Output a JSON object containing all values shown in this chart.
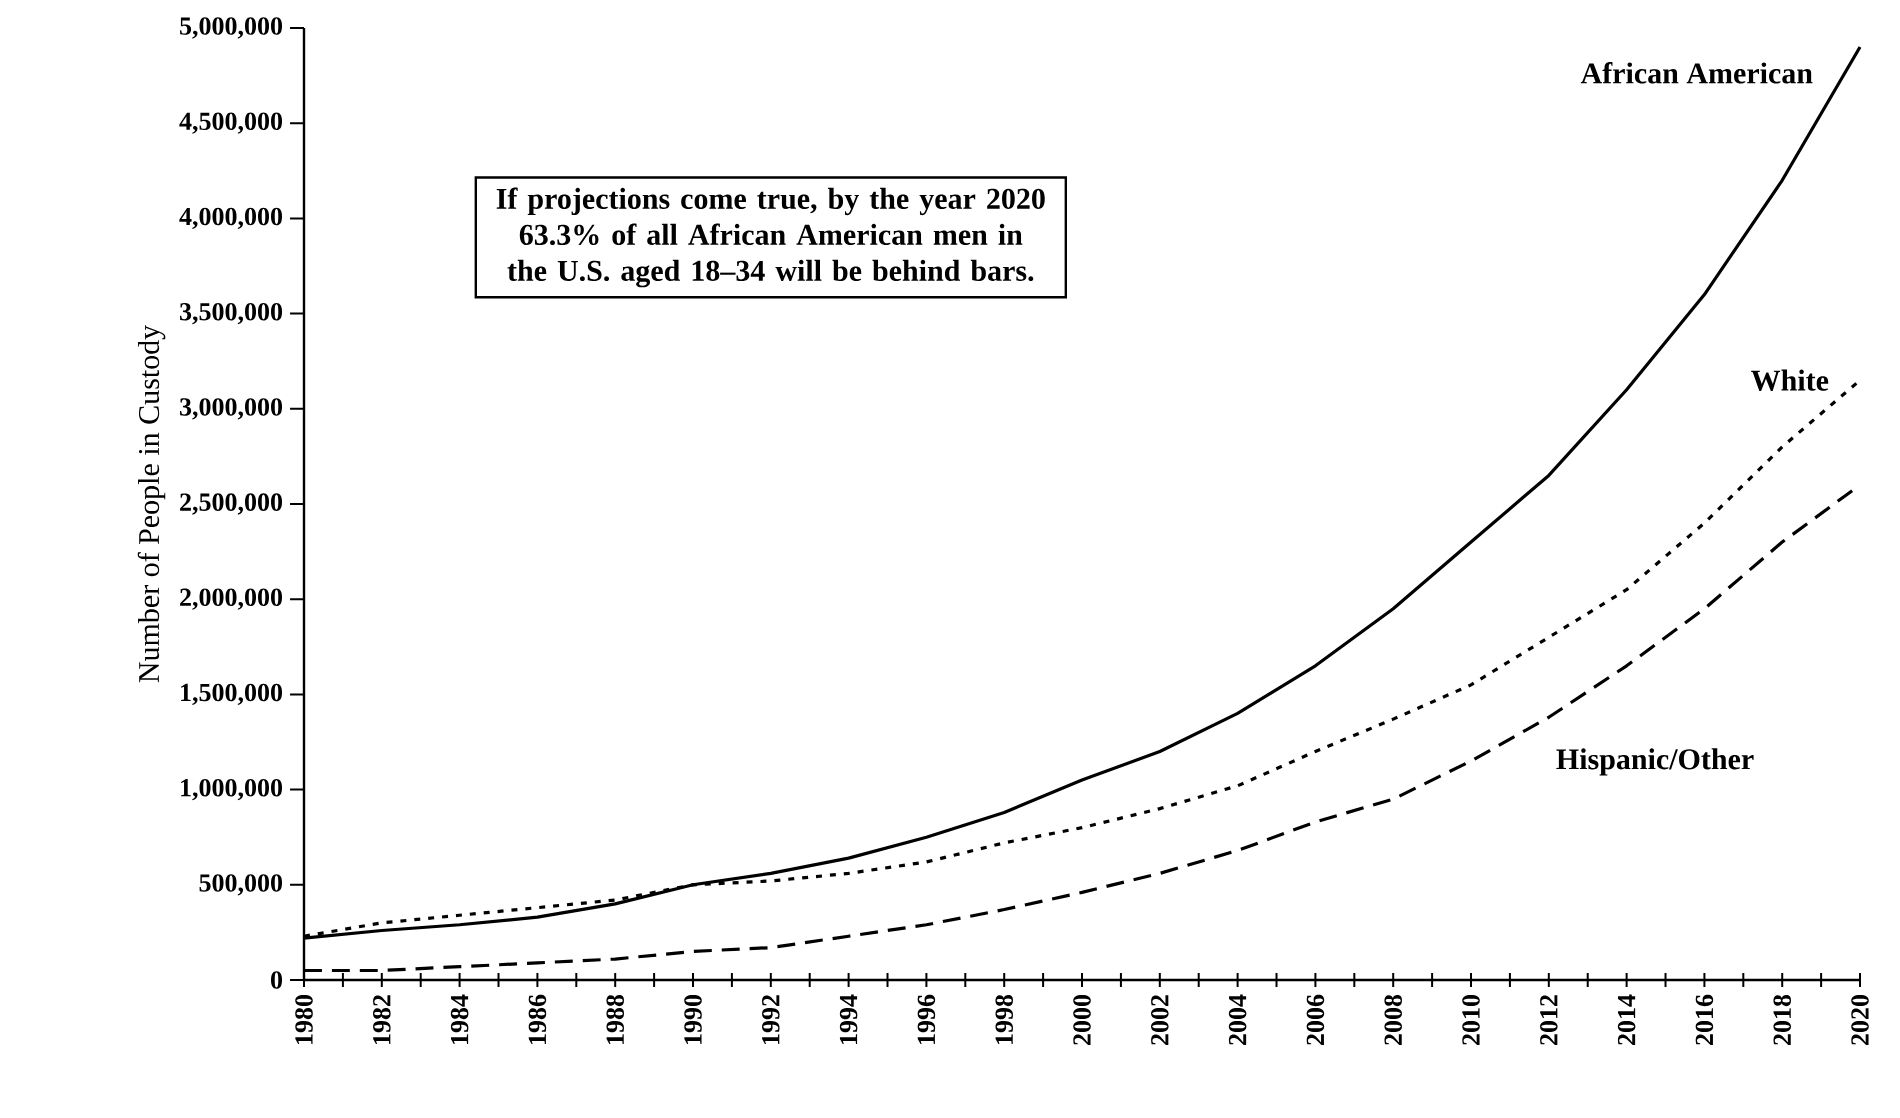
{
  "chart_data": {
    "type": "line",
    "ylabel": "Number of People in Custody",
    "x": [
      1980,
      1982,
      1984,
      1986,
      1988,
      1990,
      1992,
      1994,
      1996,
      1998,
      2000,
      2002,
      2004,
      2006,
      2008,
      2010,
      2012,
      2014,
      2016,
      2018,
      2020
    ],
    "series": [
      {
        "name": "African American",
        "color": "#000000",
        "line_style": "solid",
        "values": [
          220000,
          260000,
          290000,
          330000,
          400000,
          500000,
          560000,
          640000,
          750000,
          880000,
          1050000,
          1200000,
          1400000,
          1650000,
          1950000,
          2300000,
          2650000,
          3100000,
          3600000,
          4200000,
          4900000
        ]
      },
      {
        "name": "White",
        "color": "#000000",
        "line_style": "dotted",
        "values": [
          230000,
          300000,
          340000,
          380000,
          420000,
          500000,
          520000,
          560000,
          620000,
          720000,
          800000,
          900000,
          1020000,
          1200000,
          1370000,
          1550000,
          1800000,
          2050000,
          2400000,
          2800000,
          3150000
        ]
      },
      {
        "name": "Hispanic/Other",
        "color": "#000000",
        "line_style": "dashed",
        "values": [
          50000,
          50000,
          70000,
          90000,
          110000,
          150000,
          170000,
          230000,
          290000,
          370000,
          460000,
          560000,
          680000,
          830000,
          950000,
          1150000,
          1380000,
          1650000,
          1950000,
          2300000,
          2600000
        ]
      }
    ],
    "xlim": [
      1980,
      2020
    ],
    "xticks": [
      1980,
      {
        "value": 1981,
        "label": null
      },
      1982,
      {
        "value": 1983,
        "label": null
      },
      1984,
      {
        "value": 1985,
        "label": null
      },
      1986,
      {
        "value": 1987,
        "label": null
      },
      1988,
      {
        "value": 1989,
        "label": null
      },
      1990,
      {
        "value": 1991,
        "label": null
      },
      1992,
      {
        "value": 1993,
        "label": null
      },
      1994,
      {
        "value": 1995,
        "label": null
      },
      1996,
      {
        "value": 1997,
        "label": null
      },
      1998,
      {
        "value": 1999,
        "label": null
      },
      2000,
      {
        "value": 2001,
        "label": null
      },
      2002,
      {
        "value": 2003,
        "label": null
      },
      2004,
      {
        "value": 2005,
        "label": null
      },
      2006,
      {
        "value": 2007,
        "label": null
      },
      2008,
      {
        "value": 2009,
        "label": null
      },
      2010,
      {
        "value": 2011,
        "label": null
      },
      2012,
      {
        "value": 2013,
        "label": null
      },
      2014,
      {
        "value": 2015,
        "label": null
      },
      2016,
      {
        "value": 2017,
        "label": null
      },
      2018,
      {
        "value": 2019,
        "label": null
      },
      2020
    ],
    "ylim": [
      0,
      5000000
    ],
    "yticks": [
      {
        "value": 0,
        "label": "0"
      },
      {
        "value": 500000,
        "label": "500,000"
      },
      {
        "value": 1000000,
        "label": "1,000,000"
      },
      {
        "value": 1500000,
        "label": "1,500,000"
      },
      {
        "value": 2000000,
        "label": "2,000,000"
      },
      {
        "value": 2500000,
        "label": "2,500,000"
      },
      {
        "value": 3000000,
        "label": "3,000,000"
      },
      {
        "value": 3500000,
        "label": "3,500,000"
      },
      {
        "value": 4000000,
        "label": "4,000,000"
      },
      {
        "value": 4500000,
        "label": "4,500,000"
      },
      {
        "value": 5000000,
        "label": "5,000,000"
      }
    ],
    "grid": false,
    "annotations": [
      "If projections come true, by the year 2020 63.3% of all African American men in the U.S. aged 18–34 will be behind bars."
    ]
  }
}
